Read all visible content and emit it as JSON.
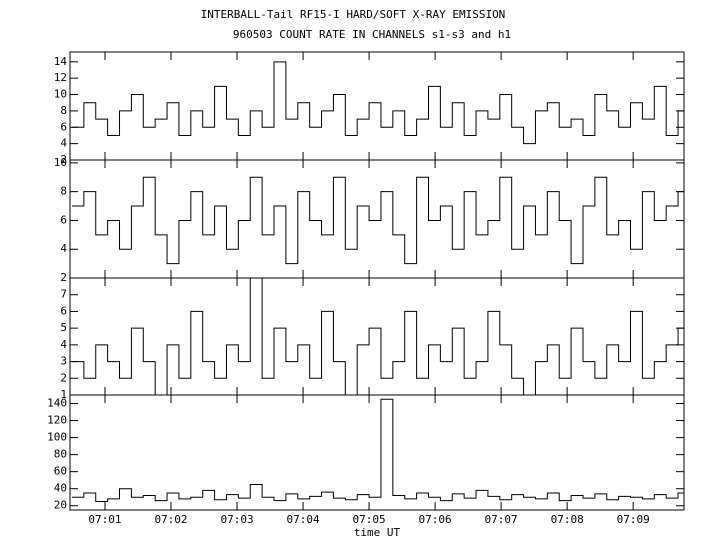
{
  "chart_data": {
    "type": "step",
    "title": "INTERBALL-Tail RF15-I HARD/SOFT X-RAY EMISSION",
    "subtitle": "960503  COUNT RATE IN CHANNELS s1-s3 and h1",
    "xlabel": "time UT",
    "xlim": [
      0.47,
      9.77
    ],
    "xticks": [
      {
        "value": 1,
        "label": "07:01"
      },
      {
        "value": 2,
        "label": "07:02"
      },
      {
        "value": 3,
        "label": "07:03"
      },
      {
        "value": 4,
        "label": "07:04"
      },
      {
        "value": 5,
        "label": "07:05"
      },
      {
        "value": 6,
        "label": "07:06"
      },
      {
        "value": 7,
        "label": "07:07"
      },
      {
        "value": 8,
        "label": "07:08"
      },
      {
        "value": 9,
        "label": "07:09"
      }
    ],
    "x": [
      0.5,
      0.68,
      0.86,
      1.04,
      1.22,
      1.4,
      1.58,
      1.76,
      1.94,
      2.12,
      2.3,
      2.48,
      2.66,
      2.84,
      3.02,
      3.2,
      3.38,
      3.56,
      3.74,
      3.92,
      4.1,
      4.28,
      4.46,
      4.64,
      4.82,
      5.0,
      5.18,
      5.36,
      5.54,
      5.72,
      5.9,
      6.08,
      6.26,
      6.44,
      6.62,
      6.8,
      6.98,
      7.16,
      7.34,
      7.52,
      7.7,
      7.88,
      8.06,
      8.24,
      8.42,
      8.6,
      8.78,
      8.96,
      9.14,
      9.32,
      9.5,
      9.68
    ],
    "color": "#000000",
    "panels": [
      {
        "ylim": [
          2,
          15.2
        ],
        "yticks": [
          2,
          4,
          6,
          8,
          10,
          12,
          14
        ],
        "values": [
          6,
          9,
          7,
          5,
          8,
          10,
          6,
          7,
          9,
          5,
          8,
          6,
          11,
          7,
          5,
          8,
          6,
          14,
          7,
          9,
          6,
          8,
          10,
          5,
          7,
          9,
          6,
          8,
          5,
          7,
          11,
          6,
          9,
          5,
          8,
          7,
          10,
          6,
          4,
          8,
          9,
          6,
          7,
          5,
          10,
          8,
          6,
          9,
          7,
          11,
          5,
          8
        ]
      },
      {
        "ylim": [
          2,
          10.2
        ],
        "yticks": [
          2,
          4,
          6,
          8,
          10
        ],
        "values": [
          7,
          8,
          5,
          6,
          4,
          7,
          9,
          5,
          3,
          6,
          8,
          5,
          7,
          4,
          6,
          9,
          5,
          7,
          3,
          8,
          6,
          5,
          9,
          4,
          7,
          6,
          8,
          5,
          3,
          9,
          6,
          7,
          4,
          8,
          5,
          6,
          9,
          4,
          7,
          5,
          8,
          6,
          3,
          7,
          9,
          5,
          6,
          4,
          8,
          6,
          7,
          8
        ]
      },
      {
        "ylim": [
          1,
          8
        ],
        "yticks": [
          1,
          2,
          3,
          4,
          5,
          6,
          7
        ],
        "values": [
          3,
          2,
          4,
          3,
          2,
          5,
          3,
          1,
          4,
          2,
          6,
          3,
          2,
          4,
          3,
          8,
          2,
          5,
          3,
          4,
          2,
          6,
          3,
          1,
          4,
          5,
          2,
          3,
          6,
          2,
          4,
          3,
          5,
          2,
          3,
          6,
          4,
          2,
          1,
          3,
          4,
          2,
          5,
          3,
          2,
          4,
          3,
          6,
          2,
          3,
          4,
          5
        ]
      },
      {
        "ylim": [
          15,
          150
        ],
        "yticks": [
          20,
          40,
          60,
          80,
          100,
          120,
          140
        ],
        "values": [
          30,
          35,
          25,
          28,
          40,
          30,
          32,
          26,
          35,
          28,
          30,
          38,
          27,
          33,
          29,
          45,
          30,
          26,
          34,
          28,
          31,
          36,
          29,
          27,
          33,
          30,
          145,
          32,
          28,
          35,
          30,
          26,
          34,
          29,
          38,
          31,
          27,
          33,
          30,
          28,
          35,
          26,
          32,
          29,
          34,
          27,
          31,
          30,
          28,
          33,
          29,
          35
        ]
      }
    ]
  }
}
